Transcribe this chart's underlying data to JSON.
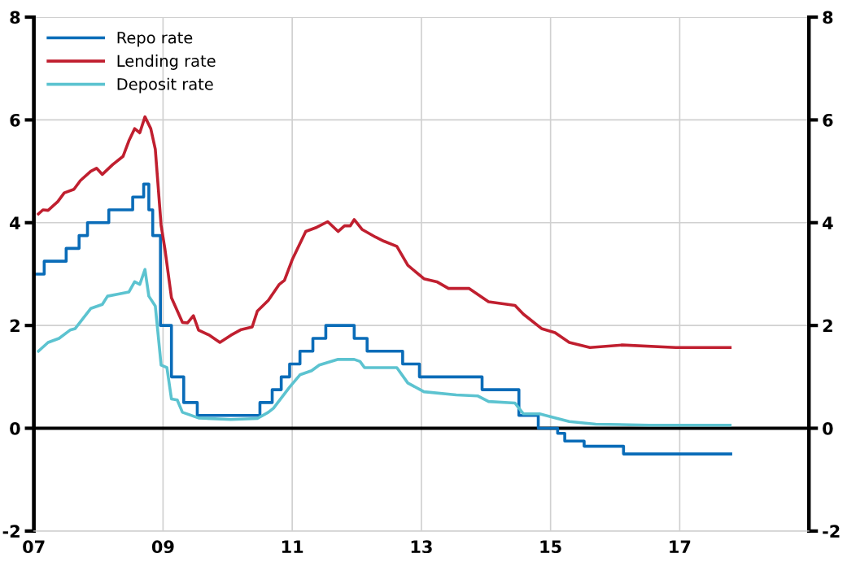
{
  "chart_data": {
    "type": "line",
    "xlim": [
      2007,
      2019
    ],
    "xticks": [
      {
        "value": 2007,
        "label": "07"
      },
      {
        "value": 2009,
        "label": "09"
      },
      {
        "value": 2011,
        "label": "11"
      },
      {
        "value": 2013,
        "label": "13"
      },
      {
        "value": 2015,
        "label": "15"
      },
      {
        "value": 2017,
        "label": "17"
      },
      {
        "value": 2019,
        "label": null
      }
    ],
    "ylim": [
      -2,
      8
    ],
    "yticks": [
      -2,
      0,
      2,
      4,
      6,
      8
    ],
    "y2lim": [
      -2,
      8
    ],
    "y2ticks": [
      -2,
      0,
      2,
      4,
      6,
      8
    ],
    "grid": true,
    "legend": "top left",
    "line_style": "solid",
    "marker": "none",
    "ref_lines": [
      {
        "axis": "y",
        "value": 0,
        "color": "#000000"
      }
    ],
    "series": [
      {
        "name": "Repo rate",
        "type": "step",
        "color": "#0a6cb8",
        "x": [
          2007.0,
          2007.16,
          2007.5,
          2007.7,
          2007.83,
          2008.16,
          2008.53,
          2008.7,
          2008.78,
          2008.84,
          2008.96,
          2009.13,
          2009.32,
          2009.53,
          2010.5,
          2010.69,
          2010.83,
          2010.96,
          2011.12,
          2011.32,
          2011.52,
          2011.96,
          2012.16,
          2012.71,
          2012.97,
          2013.94,
          2014.51,
          2014.81,
          2015.11,
          2015.22,
          2015.52,
          2016.13,
          2017.79
        ],
        "values": [
          3.0,
          3.25,
          3.5,
          3.75,
          4.0,
          4.25,
          4.5,
          4.75,
          4.25,
          3.75,
          2.0,
          1.0,
          0.5,
          0.25,
          0.5,
          0.75,
          1.0,
          1.25,
          1.5,
          1.75,
          2.0,
          1.75,
          1.5,
          1.25,
          1.0,
          0.75,
          0.25,
          0.0,
          -0.1,
          -0.25,
          -0.35,
          -0.5,
          -0.5
        ]
      },
      {
        "name": "Lending rate",
        "color": "#c01f2f",
        "x": [
          2007.07,
          2007.14,
          2007.22,
          2007.37,
          2007.47,
          2007.62,
          2007.72,
          2007.88,
          2007.97,
          2008.06,
          2008.22,
          2008.38,
          2008.47,
          2008.56,
          2008.64,
          2008.72,
          2008.81,
          2008.88,
          2008.97,
          2009.03,
          2009.13,
          2009.3,
          2009.38,
          2009.47,
          2009.55,
          2009.72,
          2009.88,
          2010.05,
          2010.21,
          2010.38,
          2010.46,
          2010.63,
          2010.8,
          2010.88,
          2011.0,
          2011.21,
          2011.38,
          2011.55,
          2011.71,
          2011.81,
          2011.9,
          2011.96,
          2012.08,
          2012.29,
          2012.42,
          2012.62,
          2012.79,
          2013.04,
          2013.24,
          2013.42,
          2013.74,
          2014.04,
          2014.45,
          2014.58,
          2014.86,
          2015.07,
          2015.29,
          2015.61,
          2016.11,
          2016.94,
          2017.36,
          2017.78
        ],
        "values": [
          4.17,
          4.25,
          4.24,
          4.41,
          4.58,
          4.65,
          4.82,
          5.0,
          5.06,
          4.94,
          5.13,
          5.29,
          5.59,
          5.83,
          5.75,
          6.06,
          5.83,
          5.43,
          3.95,
          3.48,
          2.54,
          2.06,
          2.05,
          2.19,
          1.91,
          1.81,
          1.67,
          1.81,
          1.92,
          1.97,
          2.28,
          2.49,
          2.8,
          2.88,
          3.28,
          3.83,
          3.91,
          4.02,
          3.83,
          3.94,
          3.94,
          4.06,
          3.87,
          3.72,
          3.64,
          3.54,
          3.17,
          2.91,
          2.85,
          2.72,
          2.72,
          2.46,
          2.39,
          2.22,
          1.94,
          1.86,
          1.67,
          1.57,
          1.62,
          1.57,
          1.57,
          1.57
        ]
      },
      {
        "name": "Deposit rate",
        "color": "#5cc3d0",
        "x": [
          2007.07,
          2007.22,
          2007.39,
          2007.56,
          2007.64,
          2007.88,
          2008.06,
          2008.14,
          2008.31,
          2008.47,
          2008.56,
          2008.64,
          2008.72,
          2008.78,
          2008.88,
          2008.97,
          2009.06,
          2009.13,
          2009.22,
          2009.3,
          2009.55,
          2010.05,
          2010.46,
          2010.63,
          2010.71,
          2010.96,
          2011.12,
          2011.3,
          2011.42,
          2011.71,
          2011.96,
          2012.05,
          2012.12,
          2012.62,
          2012.79,
          2013.04,
          2013.54,
          2013.87,
          2014.04,
          2014.45,
          2014.58,
          2014.83,
          2015.07,
          2015.29,
          2015.7,
          2016.53,
          2017.78
        ],
        "values": [
          1.5,
          1.67,
          1.75,
          1.91,
          1.94,
          2.33,
          2.41,
          2.57,
          2.61,
          2.65,
          2.85,
          2.8,
          3.09,
          2.57,
          2.38,
          1.23,
          1.18,
          0.57,
          0.55,
          0.31,
          0.2,
          0.17,
          0.19,
          0.31,
          0.39,
          0.8,
          1.04,
          1.12,
          1.23,
          1.34,
          1.34,
          1.3,
          1.18,
          1.18,
          0.88,
          0.71,
          0.65,
          0.63,
          0.52,
          0.49,
          0.28,
          0.28,
          0.2,
          0.13,
          0.08,
          0.06,
          0.06
        ]
      }
    ]
  }
}
